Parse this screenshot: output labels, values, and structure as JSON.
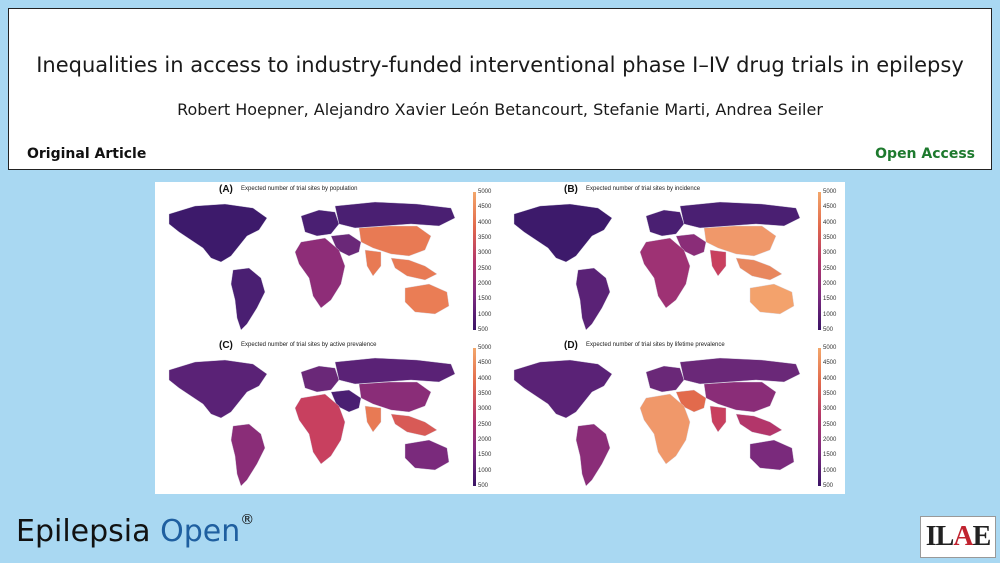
{
  "header": {
    "title": "Inequalities in access to industry-funded interventional phase I–IV drug trials in epilepsy",
    "authors": "Robert Hoepner, Alejandro Xavier León Betancourt, Stefanie Marti, Andrea Seiler",
    "article_type": "Original Article",
    "access": "Open Access"
  },
  "figure": {
    "legend_ticks": [
      "5000",
      "4500",
      "4000",
      "3500",
      "3000",
      "2500",
      "2000",
      "1500",
      "1000",
      "500"
    ],
    "colors": {
      "low": "#3a1466",
      "mid_low": "#7e2a80",
      "mid": "#b3366a",
      "mid_high": "#e26a4c",
      "high": "#f3a76b"
    },
    "panels": [
      {
        "label": "(A)",
        "caption": "Expected number of trial sites by population",
        "regions": {
          "north_america": "#3d1a6b",
          "south_america": "#4a1f72",
          "europe": "#4a1f72",
          "russia": "#4a1f72",
          "africa": "#8e2d78",
          "middle_east": "#6a2878",
          "asia": "#e87a54",
          "india": "#e87a54",
          "southeast_asia": "#e87a54",
          "australia": "#ea7d55"
        }
      },
      {
        "label": "(B)",
        "caption": "Expected number of trial sites by incidence",
        "regions": {
          "north_america": "#3d1a6b",
          "south_america": "#5a2276",
          "europe": "#4a1f72",
          "russia": "#4a1f72",
          "africa": "#9e3274",
          "middle_east": "#8a2d78",
          "asia": "#f0986a",
          "india": "#c8405f",
          "southeast_asia": "#e8875e",
          "australia": "#f3a26c"
        }
      },
      {
        "label": "(C)",
        "caption": "Expected number of trial sites by active prevalence",
        "regions": {
          "north_america": "#5a2276",
          "south_america": "#8a2d78",
          "europe": "#6a2878",
          "russia": "#5a2276",
          "africa": "#c8405f",
          "middle_east": "#4a1f72",
          "asia": "#8a2d78",
          "india": "#e87a54",
          "southeast_asia": "#d85a56",
          "australia": "#7a2a7c"
        }
      },
      {
        "label": "(D)",
        "caption": "Expected number of trial sites by lifetime prevalence",
        "regions": {
          "north_america": "#5a2276",
          "south_america": "#8a2d78",
          "europe": "#6a2878",
          "russia": "#6a2878",
          "africa": "#f0986a",
          "middle_east": "#e26a4c",
          "asia": "#8a2d78",
          "india": "#c8405f",
          "southeast_asia": "#b3366a",
          "australia": "#7a2a7c"
        }
      }
    ]
  },
  "footer": {
    "brand_main": "Epilepsia",
    "brand_open": "Open",
    "brand_reg": "®",
    "logo_text": "ILAE"
  }
}
